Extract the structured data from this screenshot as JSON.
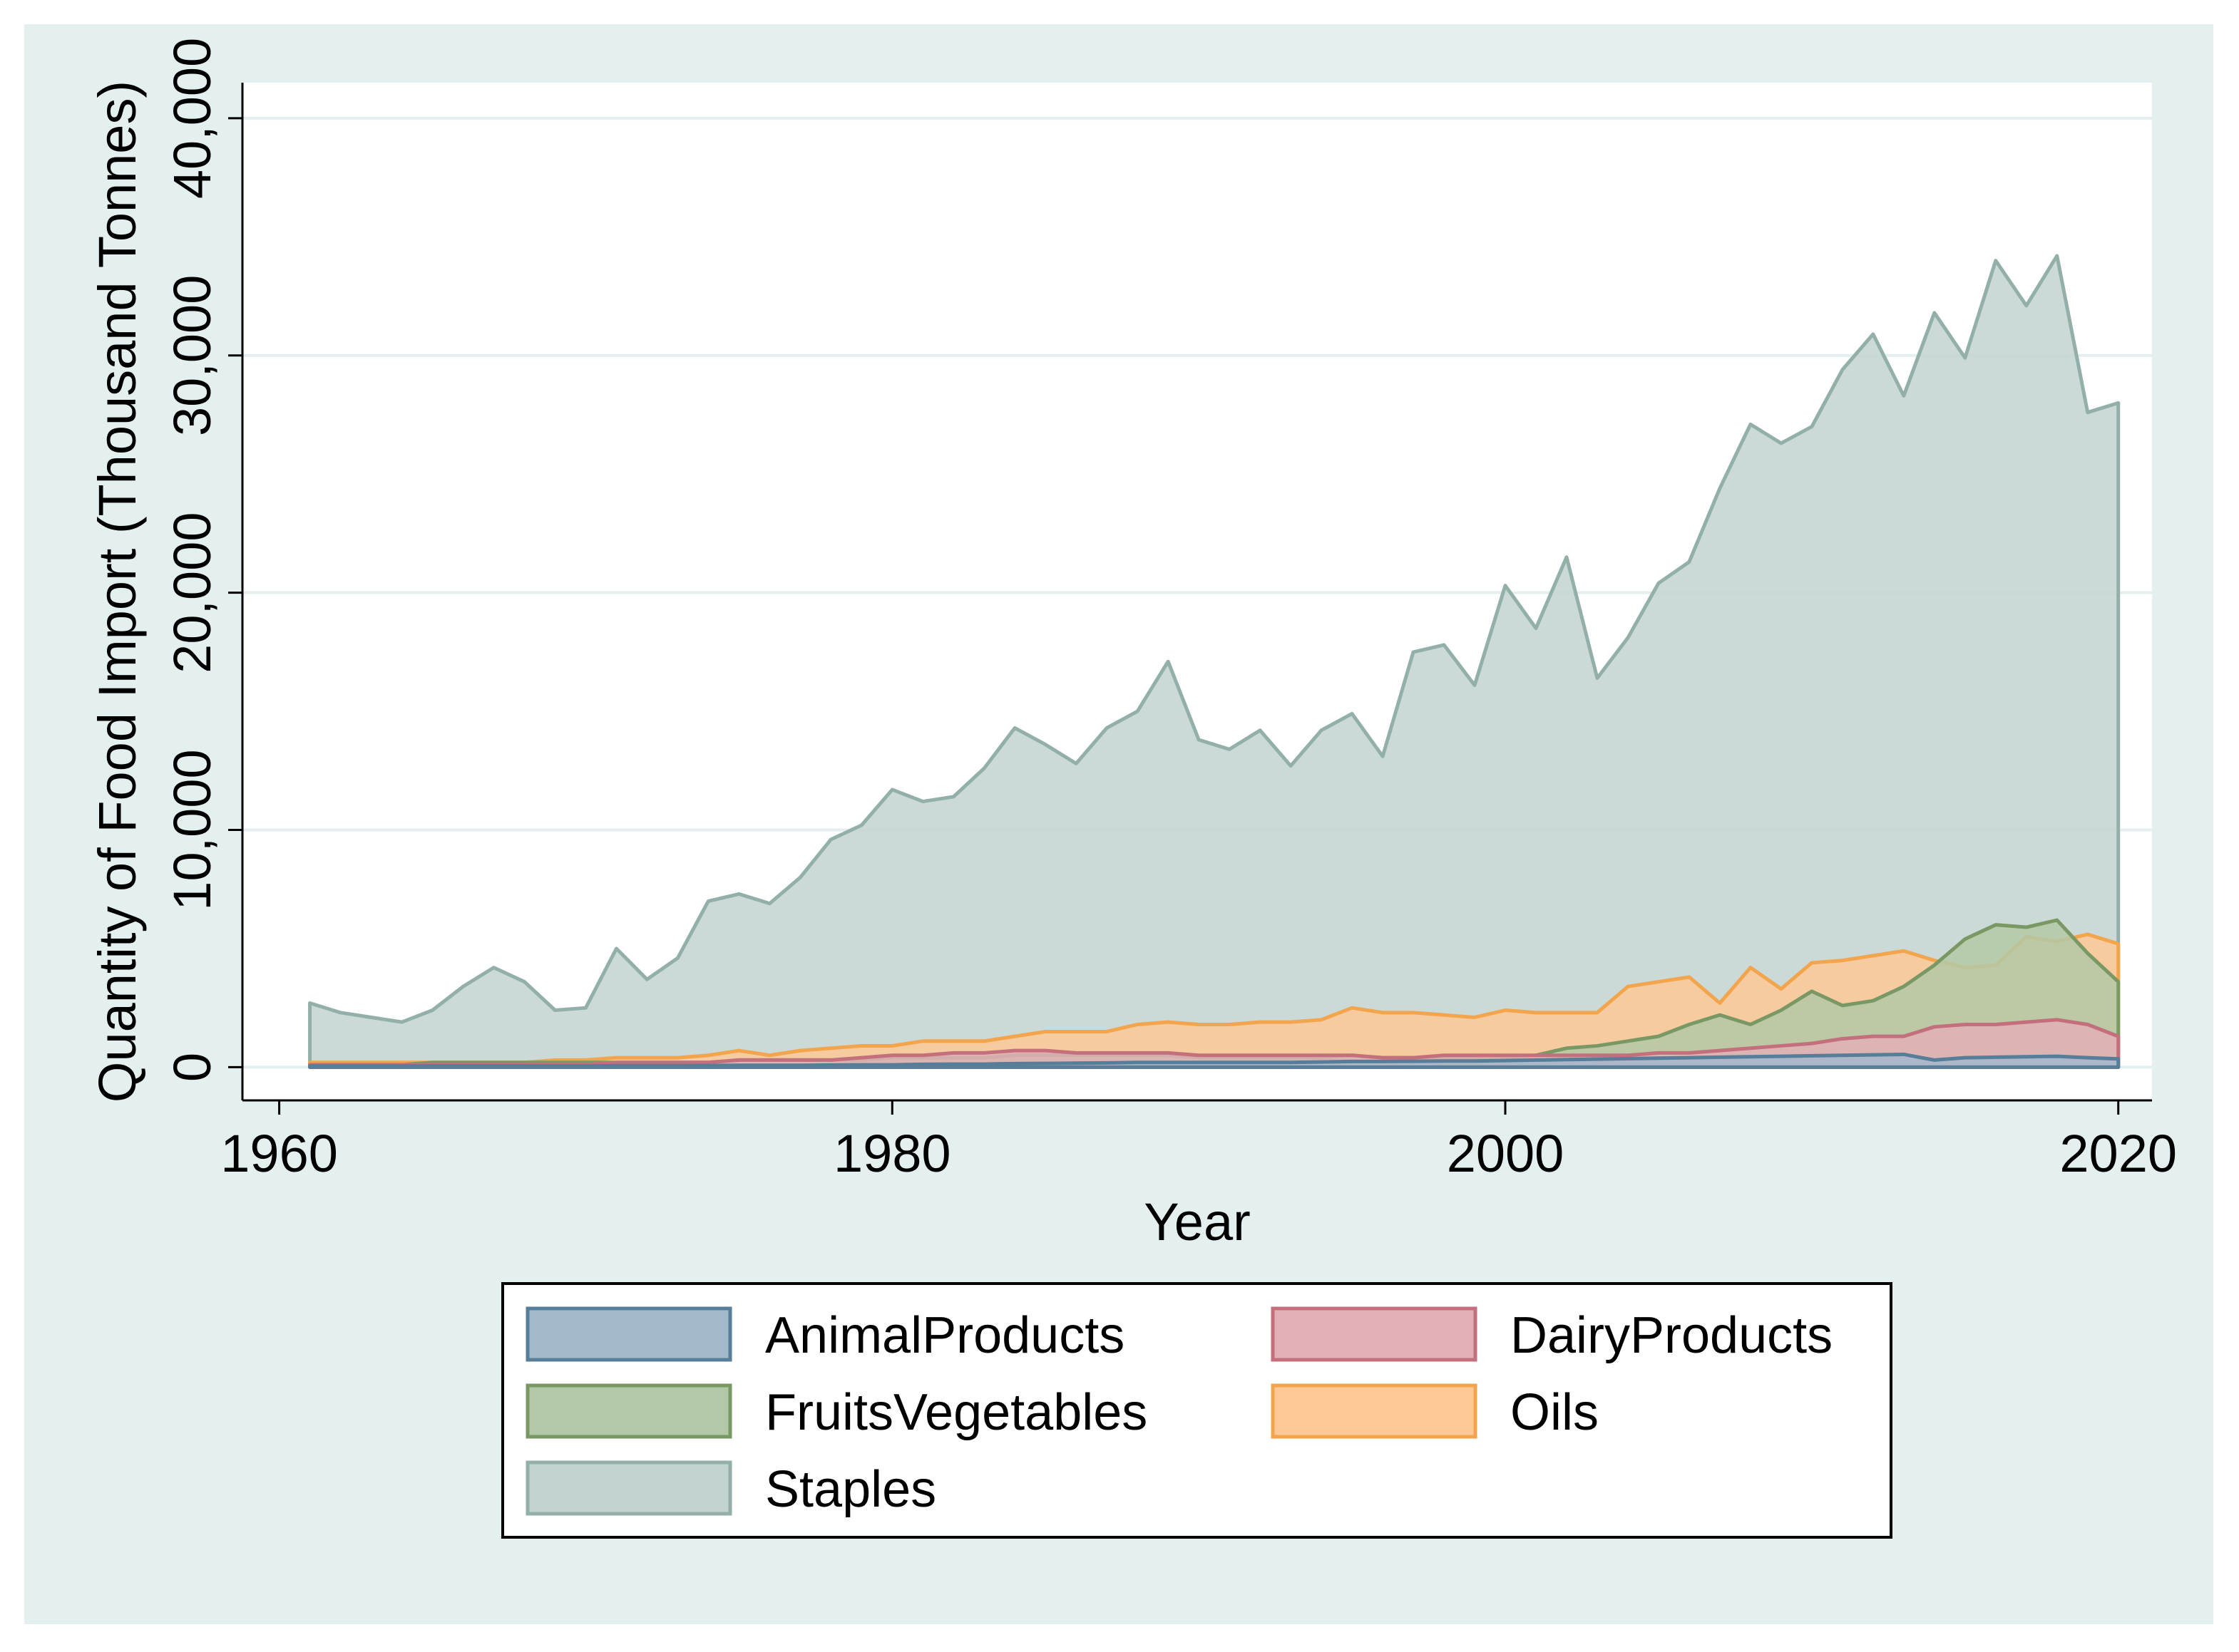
{
  "colors": {
    "outer_background": "#e4eff0",
    "plot_background": "#ffffff",
    "grid": "#e4eff0",
    "axis": "#000000"
  },
  "legend": {
    "items": [
      {
        "label": "AnimalProducts",
        "fill": "#a3b9cc",
        "stroke": "#567e98"
      },
      {
        "label": "DairyProducts",
        "fill": "#e3b0b6",
        "stroke": "#c4707c"
      },
      {
        "label": "FruitsVegetables",
        "fill": "#b3c8a6",
        "stroke": "#7a9864"
      },
      {
        "label": "Oils",
        "fill": "#fec896",
        "stroke": "#f2a54c"
      },
      {
        "label": "Staples",
        "fill": "#c3d3d0",
        "stroke": "#93afa9"
      }
    ]
  },
  "chart_data": {
    "type": "area",
    "title": "",
    "xlabel": "Year",
    "ylabel": "Quantity of Food Import (Thousand Tonnes)",
    "xlim": [
      1958.8,
      2021.1
    ],
    "ylim": [
      -1400,
      41500
    ],
    "x_ticks": [
      1960,
      1980,
      2000,
      2020
    ],
    "y_ticks": [
      0,
      10000,
      20000,
      30000,
      40000
    ],
    "x_tick_labels": [
      "1960",
      "1980",
      "2000",
      "2020"
    ],
    "y_tick_labels": [
      "0",
      "10,000",
      "20,000",
      "30,000",
      "40,000"
    ],
    "grid": true,
    "legend_position": "bottom",
    "x": [
      1961,
      1962,
      1963,
      1964,
      1965,
      1966,
      1967,
      1968,
      1969,
      1970,
      1971,
      1972,
      1973,
      1974,
      1975,
      1976,
      1977,
      1978,
      1979,
      1980,
      1981,
      1982,
      1983,
      1984,
      1985,
      1986,
      1987,
      1988,
      1989,
      1990,
      1991,
      1992,
      1993,
      1994,
      1995,
      1996,
      1997,
      1998,
      1999,
      2000,
      2001,
      2002,
      2003,
      2004,
      2005,
      2006,
      2007,
      2008,
      2009,
      2010,
      2011,
      2012,
      2013,
      2014,
      2015,
      2016,
      2017,
      2018,
      2019,
      2020
    ],
    "series": [
      {
        "name": "Staples",
        "values": [
          2700,
          2300,
          2100,
          1900,
          2400,
          3400,
          4200,
          3600,
          2400,
          2500,
          5000,
          3700,
          4600,
          7000,
          7300,
          6900,
          8000,
          9600,
          10200,
          11700,
          11200,
          11400,
          12600,
          14300,
          13600,
          12800,
          14300,
          15000,
          17100,
          13800,
          13400,
          14200,
          12700,
          14200,
          14900,
          13100,
          17500,
          17800,
          16100,
          20300,
          18500,
          21500,
          16400,
          18100,
          20400,
          21300,
          24400,
          27100,
          26300,
          27000,
          29400,
          30900,
          28300,
          31800,
          29900,
          34000,
          32100,
          34200,
          27600,
          28000
        ]
      },
      {
        "name": "Oils",
        "values": [
          200,
          200,
          200,
          200,
          200,
          200,
          200,
          200,
          300,
          300,
          400,
          400,
          400,
          500,
          700,
          500,
          700,
          800,
          900,
          900,
          1100,
          1100,
          1100,
          1300,
          1500,
          1500,
          1500,
          1800,
          1900,
          1800,
          1800,
          1900,
          1900,
          2000,
          2500,
          2300,
          2300,
          2200,
          2100,
          2400,
          2300,
          2300,
          2300,
          3400,
          3600,
          3800,
          2700,
          4200,
          3300,
          4400,
          4500,
          4700,
          4900,
          4500,
          4200,
          4300,
          5500,
          5300,
          5600,
          5200
        ]
      },
      {
        "name": "FruitsVegetables",
        "values": [
          100,
          100,
          100,
          100,
          200,
          200,
          200,
          200,
          200,
          200,
          200,
          200,
          200,
          200,
          300,
          300,
          300,
          300,
          300,
          400,
          400,
          400,
          400,
          500,
          500,
          500,
          500,
          500,
          500,
          400,
          400,
          400,
          400,
          400,
          500,
          400,
          400,
          400,
          400,
          400,
          500,
          800,
          900,
          1100,
          1300,
          1800,
          2200,
          1800,
          2400,
          3200,
          2600,
          2800,
          3400,
          4300,
          5400,
          6000,
          5900,
          6200,
          4800,
          3600
        ]
      },
      {
        "name": "DairyProducts",
        "values": [
          100,
          100,
          100,
          100,
          100,
          100,
          100,
          100,
          100,
          100,
          200,
          200,
          200,
          200,
          300,
          300,
          300,
          300,
          400,
          500,
          500,
          600,
          600,
          700,
          700,
          600,
          600,
          600,
          600,
          500,
          500,
          500,
          500,
          500,
          500,
          400,
          400,
          500,
          500,
          500,
          500,
          500,
          500,
          500,
          600,
          600,
          700,
          800,
          900,
          1000,
          1200,
          1300,
          1300,
          1700,
          1800,
          1800,
          1900,
          2000,
          1800,
          1300
        ]
      },
      {
        "name": "AnimalProducts",
        "values": [
          50,
          50,
          50,
          50,
          50,
          50,
          50,
          50,
          50,
          50,
          60,
          60,
          60,
          70,
          80,
          80,
          80,
          90,
          100,
          100,
          120,
          130,
          130,
          150,
          160,
          170,
          180,
          200,
          200,
          200,
          200,
          200,
          200,
          220,
          240,
          240,
          250,
          260,
          260,
          280,
          300,
          320,
          340,
          360,
          380,
          400,
          420,
          440,
          460,
          480,
          500,
          520,
          540,
          300,
          400,
          420,
          440,
          460,
          400,
          350
        ]
      }
    ]
  }
}
